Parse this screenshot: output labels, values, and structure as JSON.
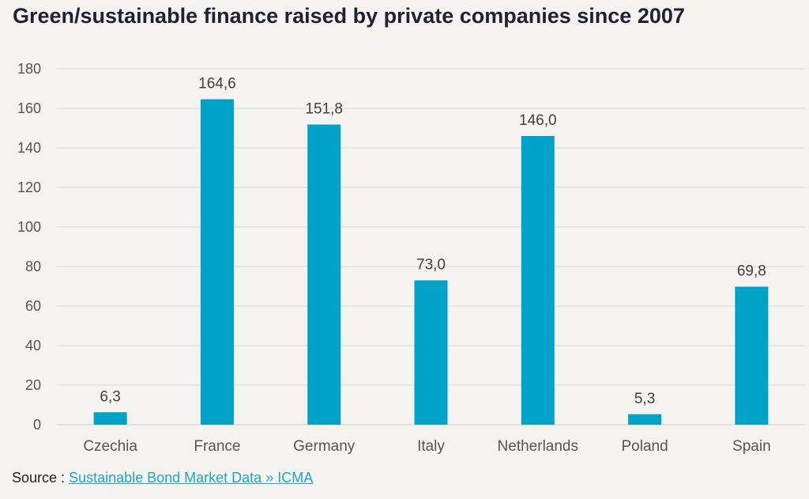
{
  "chart_data": {
    "type": "bar",
    "title": "Green/sustainable finance raised by private companies since 2007",
    "categories": [
      "Czechia",
      "France",
      "Germany",
      "Italy",
      "Netherlands",
      "Poland",
      "Spain"
    ],
    "values": [
      6.3,
      164.6,
      151.8,
      73.0,
      146.0,
      5.3,
      69.8
    ],
    "value_labels": [
      "6,3",
      "164,6",
      "151,8",
      "73,0",
      "146,0",
      "5,3",
      "69,8"
    ],
    "xlabel": "",
    "ylabel": "",
    "ylim": [
      0,
      180
    ],
    "yticks": [
      0,
      20,
      40,
      60,
      80,
      100,
      120,
      140,
      160,
      180
    ],
    "grid": true,
    "bar_color": "#00a3c8",
    "grid_color": "#d9d9d9"
  },
  "source": {
    "prefix": "Source : ",
    "link_text": "Sustainable Bond Market Data » ICMA",
    "link_color": "#1ea7c9"
  }
}
